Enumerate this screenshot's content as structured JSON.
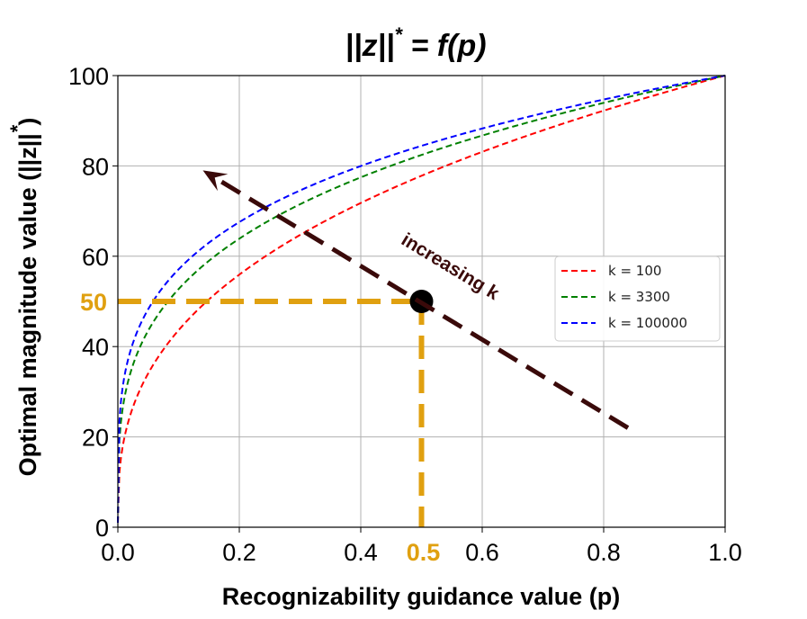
{
  "chart_data": {
    "type": "line",
    "title": "||z||",
    "title_superscript": "*",
    "title_suffix": " = f(p)",
    "xlabel": "Recognizability guidance value (p)",
    "ylabel": "Optimal magnitude value (||z||",
    "ylabel_superscript": "*",
    "ylabel_suffix": ")",
    "xlim": [
      0,
      1
    ],
    "ylim": [
      0,
      100
    ],
    "xticks": [
      "0.0",
      "0.2",
      "0.4",
      "0.6",
      "0.8",
      "1.0"
    ],
    "yticks": [
      "0",
      "20",
      "40",
      "60",
      "80",
      "100"
    ],
    "grid": true,
    "legend_position": "center-right",
    "series": [
      {
        "name": "k = 100",
        "color": "#ff0000",
        "style": "dashed",
        "k": 100
      },
      {
        "name": "k = 3300",
        "color": "#008000",
        "style": "dashed",
        "k": 3300
      },
      {
        "name": "k = 100000",
        "color": "#0000ff",
        "style": "dashed",
        "k": 100000
      }
    ],
    "highlight": {
      "x": 0.5,
      "y": 50,
      "x_label": "0.5",
      "y_label": "50",
      "color": "#e0a010",
      "marker_color": "#000000"
    },
    "arrow": {
      "text": "increasing k",
      "color": "#3a0a0a",
      "from": [
        0.84,
        22
      ],
      "to": [
        0.14,
        79
      ]
    }
  }
}
